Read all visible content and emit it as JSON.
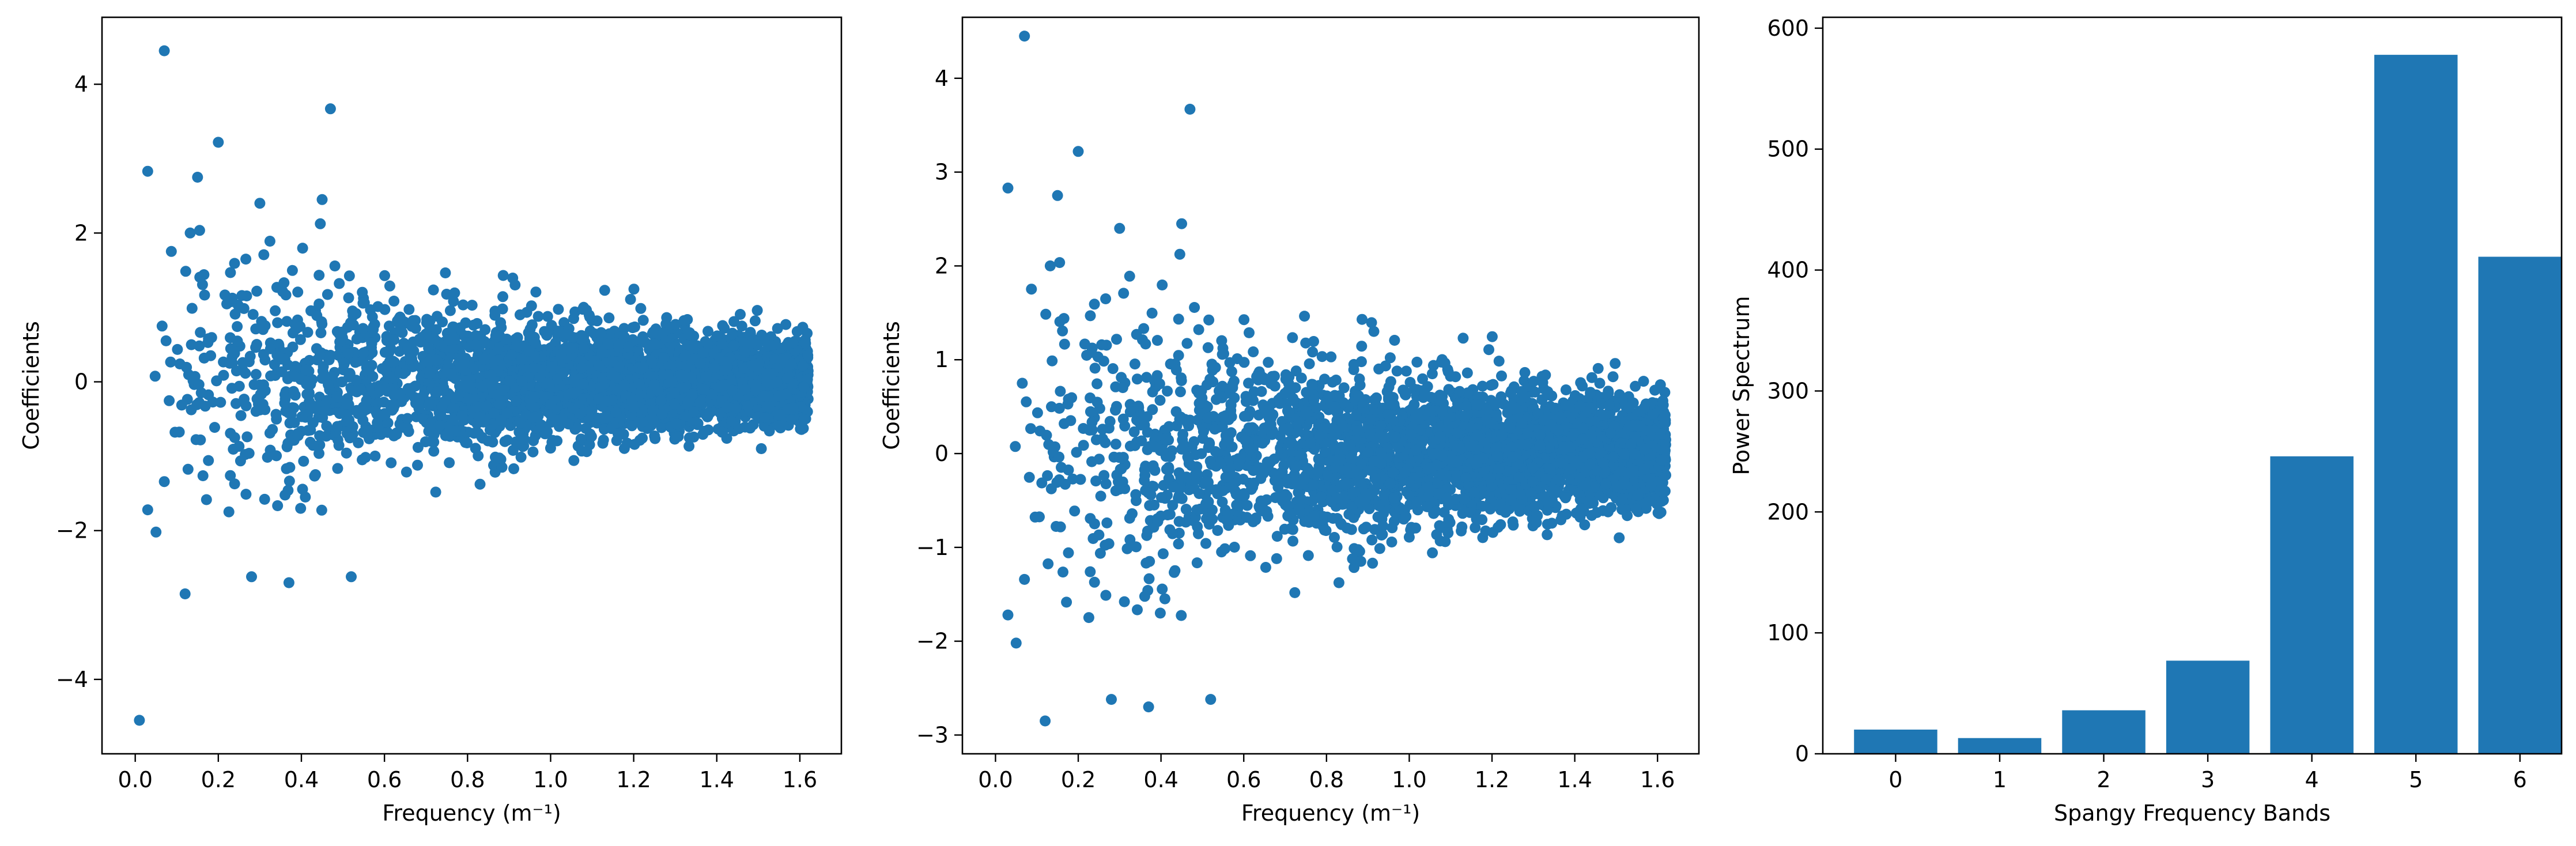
{
  "chart_data": [
    {
      "type": "scatter",
      "title": "",
      "xlabel": "Frequency (m⁻¹)",
      "ylabel": "Coefficients",
      "xlim": [
        -0.08,
        1.7
      ],
      "ylim": [
        -5.0,
        4.9
      ],
      "xticks": [
        0.0,
        0.2,
        0.4,
        0.6,
        0.8,
        1.0,
        1.2,
        1.4,
        1.6
      ],
      "xtick_labels": [
        "0.0",
        "0.2",
        "0.4",
        "0.6",
        "0.8",
        "1.0",
        "1.2",
        "1.4",
        "1.6"
      ],
      "yticks": [
        -4,
        -2,
        0,
        2,
        4
      ],
      "ytick_labels": [
        "−4",
        "−2",
        "0",
        "2",
        "4"
      ],
      "color": "#1f77b4",
      "grid": false,
      "x_range": [
        0.0,
        1.62
      ],
      "distribution": "dense noisy cloud centred on 0 whose spread narrows from about ±2.7 at low frequency to about ±0.6 near 1.6",
      "highlight_points": [
        {
          "x": 0.01,
          "y": -4.55
        },
        {
          "x": 0.07,
          "y": 4.45
        },
        {
          "x": 0.03,
          "y": 2.83
        },
        {
          "x": 0.2,
          "y": 3.22
        },
        {
          "x": 0.47,
          "y": 3.67
        },
        {
          "x": 0.15,
          "y": 2.75
        },
        {
          "x": 0.12,
          "y": -2.85
        },
        {
          "x": 0.45,
          "y": 2.45
        },
        {
          "x": 0.3,
          "y": 2.4
        },
        {
          "x": 0.37,
          "y": -2.7
        },
        {
          "x": 0.52,
          "y": -2.62
        },
        {
          "x": 0.05,
          "y": -2.02
        },
        {
          "x": 0.03,
          "y": -1.72
        },
        {
          "x": 0.28,
          "y": -2.62
        }
      ]
    },
    {
      "type": "scatter",
      "title": "",
      "xlabel": "Frequency (m⁻¹)",
      "ylabel": "Coefficients",
      "xlim": [
        -0.08,
        1.7
      ],
      "ylim": [
        -3.2,
        4.65
      ],
      "xticks": [
        0.0,
        0.2,
        0.4,
        0.6,
        0.8,
        1.0,
        1.2,
        1.4,
        1.6
      ],
      "xtick_labels": [
        "0.0",
        "0.2",
        "0.4",
        "0.6",
        "0.8",
        "1.0",
        "1.2",
        "1.4",
        "1.6"
      ],
      "yticks": [
        -3,
        -2,
        -1,
        0,
        1,
        2,
        3,
        4
      ],
      "ytick_labels": [
        "−3",
        "−2",
        "−1",
        "0",
        "1",
        "2",
        "3",
        "4"
      ],
      "color": "#1f77b4",
      "grid": false,
      "x_range": [
        0.02,
        1.62
      ],
      "distribution": "dense noisy cloud centred on 0 whose spread narrows from about ±2.7 at low frequency to about ±0.6 near 1.6",
      "highlight_points": [
        {
          "x": 0.07,
          "y": 4.45
        },
        {
          "x": 0.03,
          "y": 2.83
        },
        {
          "x": 0.2,
          "y": 3.22
        },
        {
          "x": 0.47,
          "y": 3.67
        },
        {
          "x": 0.15,
          "y": 2.75
        },
        {
          "x": 0.12,
          "y": -2.85
        },
        {
          "x": 0.45,
          "y": 2.45
        },
        {
          "x": 0.3,
          "y": 2.4
        },
        {
          "x": 0.37,
          "y": -2.7
        },
        {
          "x": 0.52,
          "y": -2.62
        },
        {
          "x": 0.05,
          "y": -2.02
        },
        {
          "x": 0.03,
          "y": -1.72
        },
        {
          "x": 0.28,
          "y": -2.62
        }
      ]
    },
    {
      "type": "bar",
      "title": "",
      "xlabel": "Spangy Frequency Bands",
      "ylabel": "Power Spectrum",
      "categories": [
        "0",
        "1",
        "2",
        "3",
        "4",
        "5",
        "6"
      ],
      "values": [
        20,
        13,
        36,
        77,
        246,
        578,
        411
      ],
      "xlim": [
        -0.7,
        6.4
      ],
      "ylim": [
        0,
        609
      ],
      "yticks": [
        0,
        100,
        200,
        300,
        400,
        500,
        600
      ],
      "ytick_labels": [
        "0",
        "100",
        "200",
        "300",
        "400",
        "500",
        "600"
      ],
      "color": "#1f77b4",
      "grid": false
    }
  ]
}
